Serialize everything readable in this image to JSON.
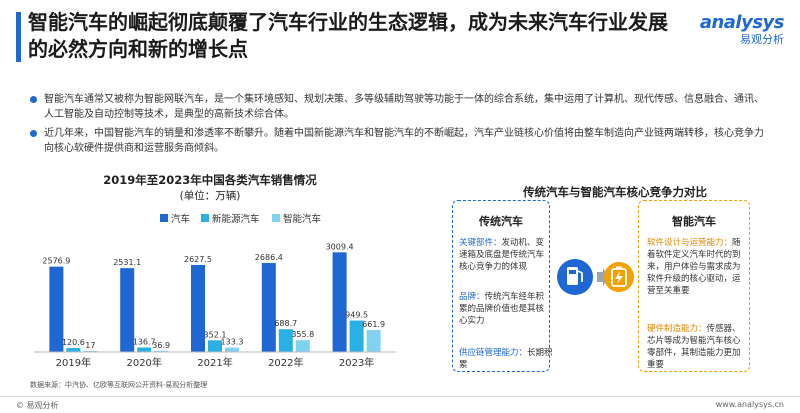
{
  "title": "智能汽车的崛起彻底颠覆了汽车行业的生态逻辑，成为未来汽车行业发展的必然方向和新的增长点",
  "logo": {
    "en": "analysys",
    "cn": "易观分析"
  },
  "bullets": [
    "智能汽车通常又被称为智能网联汽车，是一个集环境感知、规划决策、多等级辅助驾驶等功能于一体的综合系统，集中运用了计算机、现代传感、信息融合、通讯、人工智能及自动控制等技术，是典型的高新技术综合体。",
    "近几年来，中国智能汽车的销量和渗透率不断攀升。随着中国新能源汽车和智能汽车的不断崛起，汽车产业链核心价值将由整车制造向产业链两端转移，核心竞争力向核心软硬件提供商和运营服务商倾斜。"
  ],
  "chart_data": {
    "type": "bar",
    "title": "2019年至2023年中国各类汽车销售情况",
    "subtitle": "(单位：万辆)",
    "categories": [
      "2019年",
      "2020年",
      "2021年",
      "2022年",
      "2023年"
    ],
    "series": [
      {
        "name": "汽车",
        "values": [
          2576.9,
          2531.1,
          2627.5,
          2686.4,
          3009.4
        ],
        "color": "#1f67d2"
      },
      {
        "name": "新能源汽车",
        "values": [
          120.6,
          136.7,
          352.1,
          688.7,
          949.5
        ],
        "color": "#2ab0e4"
      },
      {
        "name": "智能汽车",
        "values": [
          17,
          36.9,
          133.3,
          355.8,
          661.9
        ],
        "color": "#7fd3f0"
      }
    ],
    "value_labels": [
      [
        "2576.9",
        "120.6",
        "17"
      ],
      [
        "2531.1",
        "136.7",
        "36.9"
      ],
      [
        "2627.5",
        "352.1",
        "133.3"
      ],
      [
        "2686.4",
        "688.7",
        "355.8"
      ],
      [
        "3009.4",
        "949.5",
        "661.9"
      ]
    ],
    "ylim": [
      0,
      3200
    ],
    "grid": false,
    "legend": "top"
  },
  "source": "数据来源：中汽协、亿欧等互联网公开资料·易观分析整理",
  "footer": {
    "left": "© 易观分析",
    "right": "www.analysys.cn"
  },
  "comparison": {
    "title": "传统汽车与智能汽车核心竞争力对比",
    "traditional": {
      "title": "传统汽车",
      "items": [
        {
          "label": "关键部件：",
          "text": "发动机、变速箱及底盘是传统汽车核心竞争力的体现"
        },
        {
          "label": "品牌：",
          "text": "传统汽车经年积累的品牌价值也是其核心实力"
        },
        {
          "label": "供应链管理能力：",
          "text": "长期积累"
        }
      ]
    },
    "smart": {
      "title": "智能汽车",
      "items": [
        {
          "label": "软件设计与运营能力：",
          "text": "随着软件定义汽车时代的到来，用户体验与需求成为软件升级的核心驱动，运营至关重要"
        },
        {
          "label": "硬件制造能力：",
          "text": "传感器、芯片等成为智能汽车核心零部件，其制造能力更加重要"
        }
      ]
    },
    "colors": {
      "traditional": "#1f67d2",
      "smart": "#f2a200"
    },
    "icons": [
      "fuel-pump-icon",
      "battery-icon"
    ]
  }
}
